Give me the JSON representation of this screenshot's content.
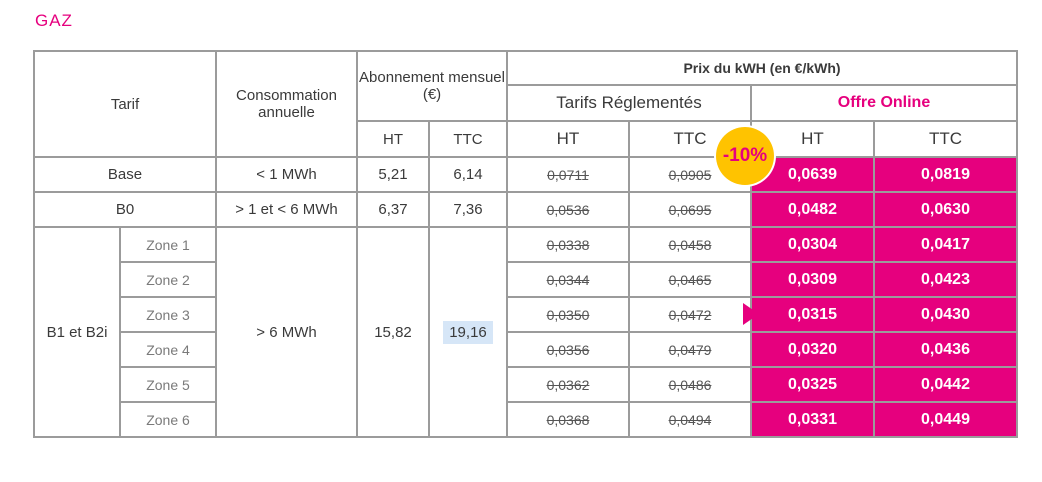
{
  "section_title": "GAZ",
  "header": {
    "tarif": "Tarif",
    "consommation": "Consommation annuelle",
    "abonnement": "Abonnement mensuel (€)",
    "prix": "Prix du kWH (en €/kWh)",
    "reglementes": "Tarifs Réglementés",
    "offre": "Offre Online",
    "ht": "HT",
    "ttc": "TTC"
  },
  "badge": "-10%",
  "rows": [
    {
      "tarif": "Base",
      "conso": "< 1 MWh",
      "abo_ht": "5,21",
      "abo_ttc": "6,14",
      "reg_ht": "0,0711",
      "reg_ttc": "0,0905",
      "on_ht": "0,0639",
      "on_ttc": "0,0819"
    },
    {
      "tarif": "B0",
      "conso": "> 1 et < 6 MWh",
      "abo_ht": "6,37",
      "abo_ttc": "7,36",
      "reg_ht": "0,0536",
      "reg_ttc": "0,0695",
      "on_ht": "0,0482",
      "on_ttc": "0,0630"
    }
  ],
  "group": {
    "tarif": "B1 et B2i",
    "conso": "> 6 MWh",
    "abo_ht": "15,82",
    "abo_ttc": "19,16",
    "zones": [
      {
        "zone": "Zone 1",
        "reg_ht": "0,0338",
        "reg_ttc": "0,0458",
        "on_ht": "0,0304",
        "on_ttc": "0,0417"
      },
      {
        "zone": "Zone 2",
        "reg_ht": "0,0344",
        "reg_ttc": "0,0465",
        "on_ht": "0,0309",
        "on_ttc": "0,0423"
      },
      {
        "zone": "Zone 3",
        "reg_ht": "0,0350",
        "reg_ttc": "0,0472",
        "on_ht": "0,0315",
        "on_ttc": "0,0430"
      },
      {
        "zone": "Zone 4",
        "reg_ht": "0,0356",
        "reg_ttc": "0,0479",
        "on_ht": "0,0320",
        "on_ttc": "0,0436"
      },
      {
        "zone": "Zone 5",
        "reg_ht": "0,0362",
        "reg_ttc": "0,0486",
        "on_ht": "0,0325",
        "on_ttc": "0,0442"
      },
      {
        "zone": "Zone 6",
        "reg_ht": "0,0368",
        "reg_ttc": "0,0494",
        "on_ht": "0,0331",
        "on_ttc": "0,0449"
      }
    ]
  },
  "colors": {
    "accent": "#e6007e",
    "badge": "#ffc300",
    "border": "#9b9b9b"
  }
}
